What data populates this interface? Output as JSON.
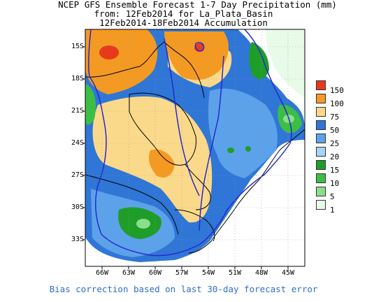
{
  "title": {
    "line1": "NCEP GFS Ensemble Forecast 1-7 Day Precipitation (mm)",
    "line2": "from: 12Feb2014   for La_Plata_Basin",
    "line3": "12Feb2014-18Feb2014 Accumulation"
  },
  "axes": {
    "y_ticks": [
      "15S",
      "18S",
      "21S",
      "24S",
      "27S",
      "30S",
      "33S"
    ],
    "x_ticks": [
      "66W",
      "63W",
      "60W",
      "57W",
      "54W",
      "51W",
      "48W",
      "45W"
    ],
    "lat_range": [
      -36,
      -13
    ],
    "lon_range": [
      -68,
      -44
    ]
  },
  "legend": {
    "items": [
      {
        "label": "150",
        "color": "#e8391c"
      },
      {
        "label": "100",
        "color": "#f49a22"
      },
      {
        "label": "75",
        "color": "#fbd98a"
      },
      {
        "label": "50",
        "color": "#2f76d6"
      },
      {
        "label": "25",
        "color": "#5ca2ea"
      },
      {
        "label": "20",
        "color": "#a8d4f6"
      },
      {
        "label": "15",
        "color": "#1e9e28"
      },
      {
        "label": "10",
        "color": "#3cbe44"
      },
      {
        "label": "5",
        "color": "#8ae08a"
      },
      {
        "label": "1",
        "color": "#e8fae8"
      }
    ]
  },
  "footer": "Bias correction based on last 30-day forecast error"
}
